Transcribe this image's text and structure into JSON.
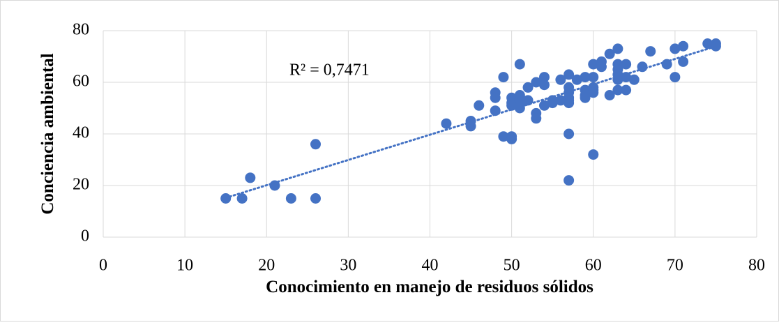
{
  "chart_data": {
    "type": "scatter",
    "x_label": "Conocimiento en manejo de residuos sólidos",
    "y_label": "Conciencia ambiental",
    "annotation": "R² = 0,7471",
    "color": "#4472c4",
    "trendline": true,
    "grid": true,
    "xlim": [
      0,
      80
    ],
    "xticks": [
      0,
      10,
      20,
      30,
      40,
      50,
      60,
      70,
      80
    ],
    "ylim": [
      0,
      80
    ],
    "yticks": [
      0,
      20,
      40,
      60,
      80
    ],
    "x": [
      15,
      17,
      18,
      21,
      23,
      26,
      26,
      42,
      45,
      45,
      46,
      48,
      48,
      48,
      49,
      49,
      50,
      50,
      50,
      50,
      50,
      51,
      51,
      51,
      51,
      51,
      52,
      52,
      53,
      53,
      53,
      54,
      54,
      54,
      55,
      55,
      56,
      56,
      57,
      57,
      57,
      57,
      57,
      57,
      57,
      57,
      58,
      59,
      59,
      59,
      59,
      60,
      60,
      60,
      60,
      60,
      60,
      61,
      61,
      62,
      62,
      63,
      63,
      63,
      63,
      63,
      63,
      64,
      64,
      64,
      65,
      66,
      67,
      69,
      70,
      70,
      71,
      71,
      74,
      75,
      75
    ],
    "values": [
      15,
      15,
      23,
      20,
      15,
      15,
      36,
      44,
      45,
      43,
      51,
      56,
      54,
      49,
      62,
      39,
      39,
      38,
      54,
      52,
      51,
      67,
      55,
      53,
      51,
      50,
      58,
      53,
      60,
      48,
      46,
      62,
      59,
      51,
      53,
      52,
      61,
      53,
      63,
      58,
      56,
      54,
      53,
      52,
      40,
      22,
      61,
      62,
      57,
      55,
      54,
      67,
      62,
      58,
      57,
      56,
      32,
      68,
      66,
      71,
      55,
      73,
      67,
      65,
      63,
      61,
      57,
      67,
      62,
      57,
      61,
      66,
      72,
      67,
      73,
      62,
      74,
      68,
      75,
      75,
      74
    ]
  }
}
